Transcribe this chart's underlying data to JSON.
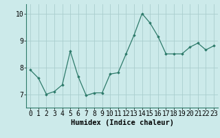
{
  "x": [
    0,
    1,
    2,
    3,
    4,
    5,
    6,
    7,
    8,
    9,
    10,
    11,
    12,
    13,
    14,
    15,
    16,
    17,
    18,
    19,
    20,
    21,
    22,
    23
  ],
  "y": [
    7.9,
    7.6,
    7.0,
    7.1,
    7.35,
    8.6,
    7.65,
    6.95,
    7.05,
    7.05,
    7.75,
    7.8,
    8.5,
    9.2,
    10.0,
    9.65,
    9.15,
    8.5,
    8.5,
    8.5,
    8.75,
    8.9,
    8.65,
    8.8
  ],
  "line_color": "#2d7a6a",
  "bg_color": "#cceaea",
  "grid_color": "#aacece",
  "xlabel": "Humidex (Indice chaleur)",
  "ylim": [
    6.5,
    10.35
  ],
  "xlim": [
    -0.5,
    23.5
  ],
  "yticks": [
    7,
    8,
    9,
    10
  ],
  "xlabel_fontsize": 7.5,
  "tick_fontsize": 7
}
